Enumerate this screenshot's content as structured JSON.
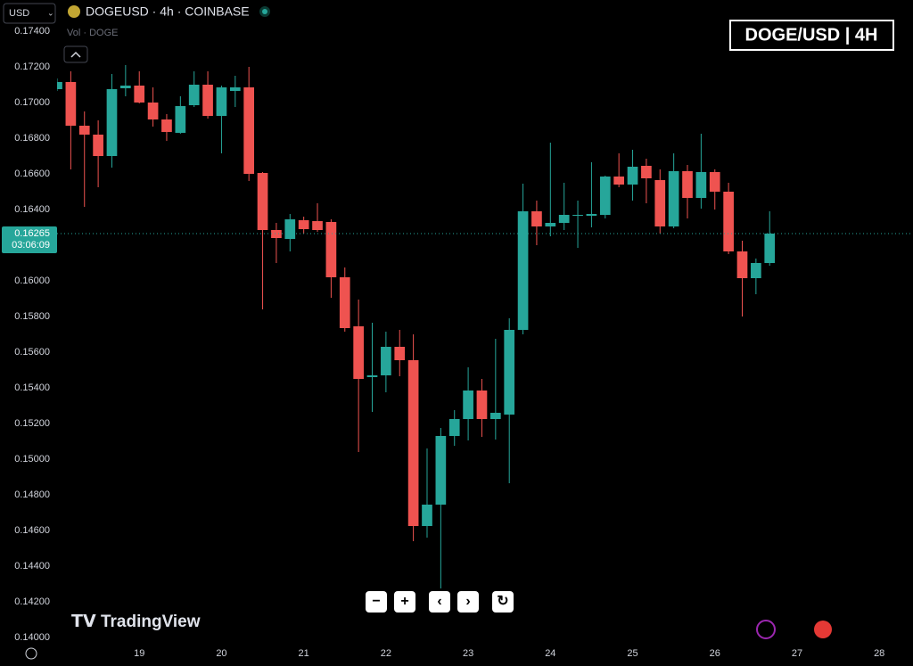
{
  "chart_data": {
    "type": "candlestick",
    "title": "DOGEUSD · 4h · COINBASE",
    "currency": "USD",
    "volume_label": "Vol · DOGE",
    "annotation": "DOGE/USD | 4H",
    "last_price": 0.16265,
    "countdown": "03:06:09",
    "watermark": "TradingView",
    "up_color": "#26a69a",
    "down_color": "#ef5350",
    "grid": false,
    "x": [
      18,
      18.1667,
      18.3333,
      18.5,
      18.6667,
      18.8333,
      19,
      19.1667,
      19.3333,
      19.5,
      19.6667,
      19.8333,
      20,
      20.1667,
      20.3333,
      20.5,
      20.6667,
      20.8333,
      21,
      21.1667,
      21.3333,
      21.5,
      21.6667,
      21.8333,
      22,
      22.1667,
      22.3333,
      22.5,
      22.6667,
      22.8333,
      23,
      23.1667,
      23.3333,
      23.5,
      23.6667,
      23.8333,
      24,
      24.1667,
      24.3333,
      24.5,
      24.6667,
      24.8333,
      25,
      25.1667,
      25.3333,
      25.5,
      25.6667,
      25.8333,
      26,
      26.1667,
      26.3333,
      26.5,
      26.6667
    ],
    "open": [
      0.17075,
      0.17115,
      0.1687,
      0.1682,
      0.167,
      0.1708,
      0.17095,
      0.17,
      0.16905,
      0.1683,
      0.16985,
      0.171,
      0.16925,
      0.17065,
      0.17085,
      0.16605,
      0.16285,
      0.16235,
      0.1634,
      0.16335,
      0.1633,
      0.1602,
      0.15745,
      0.1546,
      0.1547,
      0.1563,
      0.15555,
      0.14625,
      0.14745,
      0.1513,
      0.15225,
      0.15385,
      0.15225,
      0.1525,
      0.15725,
      0.1639,
      0.16305,
      0.16325,
      0.16365,
      0.16365,
      0.1637,
      0.16585,
      0.1654,
      0.16645,
      0.16565,
      0.16305,
      0.16615,
      0.16465,
      0.1661,
      0.165,
      0.16165,
      0.16015,
      0.161
    ],
    "high": [
      0.17135,
      0.17175,
      0.1695,
      0.169,
      0.1716,
      0.1721,
      0.17175,
      0.17085,
      0.16935,
      0.17035,
      0.17175,
      0.17175,
      0.17095,
      0.1715,
      0.172,
      0.1661,
      0.16325,
      0.16375,
      0.1636,
      0.16435,
      0.16345,
      0.16075,
      0.15895,
      0.15765,
      0.15715,
      0.15725,
      0.157,
      0.1506,
      0.15175,
      0.15275,
      0.15515,
      0.1545,
      0.15675,
      0.1579,
      0.16545,
      0.1645,
      0.16775,
      0.1655,
      0.1645,
      0.16665,
      0.1659,
      0.16715,
      0.16735,
      0.16685,
      0.16625,
      0.16715,
      0.1665,
      0.16825,
      0.16625,
      0.1655,
      0.16225,
      0.16125,
      0.1639
    ],
    "low": [
      0.17065,
      0.16625,
      0.16415,
      0.16525,
      0.16635,
      0.17035,
      0.16995,
      0.16865,
      0.16785,
      0.16825,
      0.16975,
      0.1691,
      0.16715,
      0.16975,
      0.1656,
      0.1584,
      0.161,
      0.16165,
      0.16265,
      0.16275,
      0.15905,
      0.15715,
      0.1504,
      0.15265,
      0.15375,
      0.15465,
      0.1454,
      0.1456,
      0.14275,
      0.15075,
      0.15105,
      0.15125,
      0.1511,
      0.14865,
      0.157,
      0.162,
      0.1625,
      0.16285,
      0.16185,
      0.163,
      0.1635,
      0.16525,
      0.1645,
      0.16435,
      0.16265,
      0.16295,
      0.1635,
      0.16405,
      0.164,
      0.1615,
      0.158,
      0.15925,
      0.16085
    ],
    "close": [
      0.17115,
      0.1687,
      0.1682,
      0.167,
      0.17075,
      0.17095,
      0.17,
      0.16905,
      0.16835,
      0.1698,
      0.171,
      0.16925,
      0.17085,
      0.17085,
      0.166,
      0.16285,
      0.1624,
      0.16345,
      0.1629,
      0.16285,
      0.1602,
      0.15735,
      0.1545,
      0.1547,
      0.1563,
      0.15555,
      0.14625,
      0.14745,
      0.1513,
      0.15225,
      0.15385,
      0.15225,
      0.1526,
      0.15725,
      0.1639,
      0.16305,
      0.16325,
      0.1637,
      0.1637,
      0.16375,
      0.16585,
      0.1654,
      0.1664,
      0.16575,
      0.16305,
      0.16615,
      0.16465,
      0.1661,
      0.165,
      0.16165,
      0.16015,
      0.161,
      0.16265
    ],
    "xlim": [
      18,
      28.41
    ],
    "xticks": [
      19,
      20,
      21,
      22,
      23,
      24,
      25,
      26,
      27,
      28
    ],
    "ylim": [
      0.14,
      0.174
    ],
    "yticks": [
      {
        "value": 0.14,
        "label": "0.14000"
      },
      {
        "value": 0.142,
        "label": "0.14200"
      },
      {
        "value": 0.144,
        "label": "0.14400"
      },
      {
        "value": 0.146,
        "label": "0.14600"
      },
      {
        "value": 0.148,
        "label": "0.14800"
      },
      {
        "value": 0.15,
        "label": "0.15000"
      },
      {
        "value": 0.152,
        "label": "0.15200"
      },
      {
        "value": 0.154,
        "label": "0.15400"
      },
      {
        "value": 0.156,
        "label": "0.15600"
      },
      {
        "value": 0.158,
        "label": "0.15800"
      },
      {
        "value": 0.16,
        "label": "0.16000"
      },
      {
        "value": 0.162,
        "label": "0.16200"
      },
      {
        "value": 0.164,
        "label": "0.16400"
      },
      {
        "value": 0.166,
        "label": "0.16600"
      },
      {
        "value": 0.168,
        "label": "0.16800"
      },
      {
        "value": 0.17,
        "label": "0.17000"
      },
      {
        "value": 0.172,
        "label": "0.17200"
      },
      {
        "value": 0.174,
        "label": "0.17400"
      }
    ]
  }
}
